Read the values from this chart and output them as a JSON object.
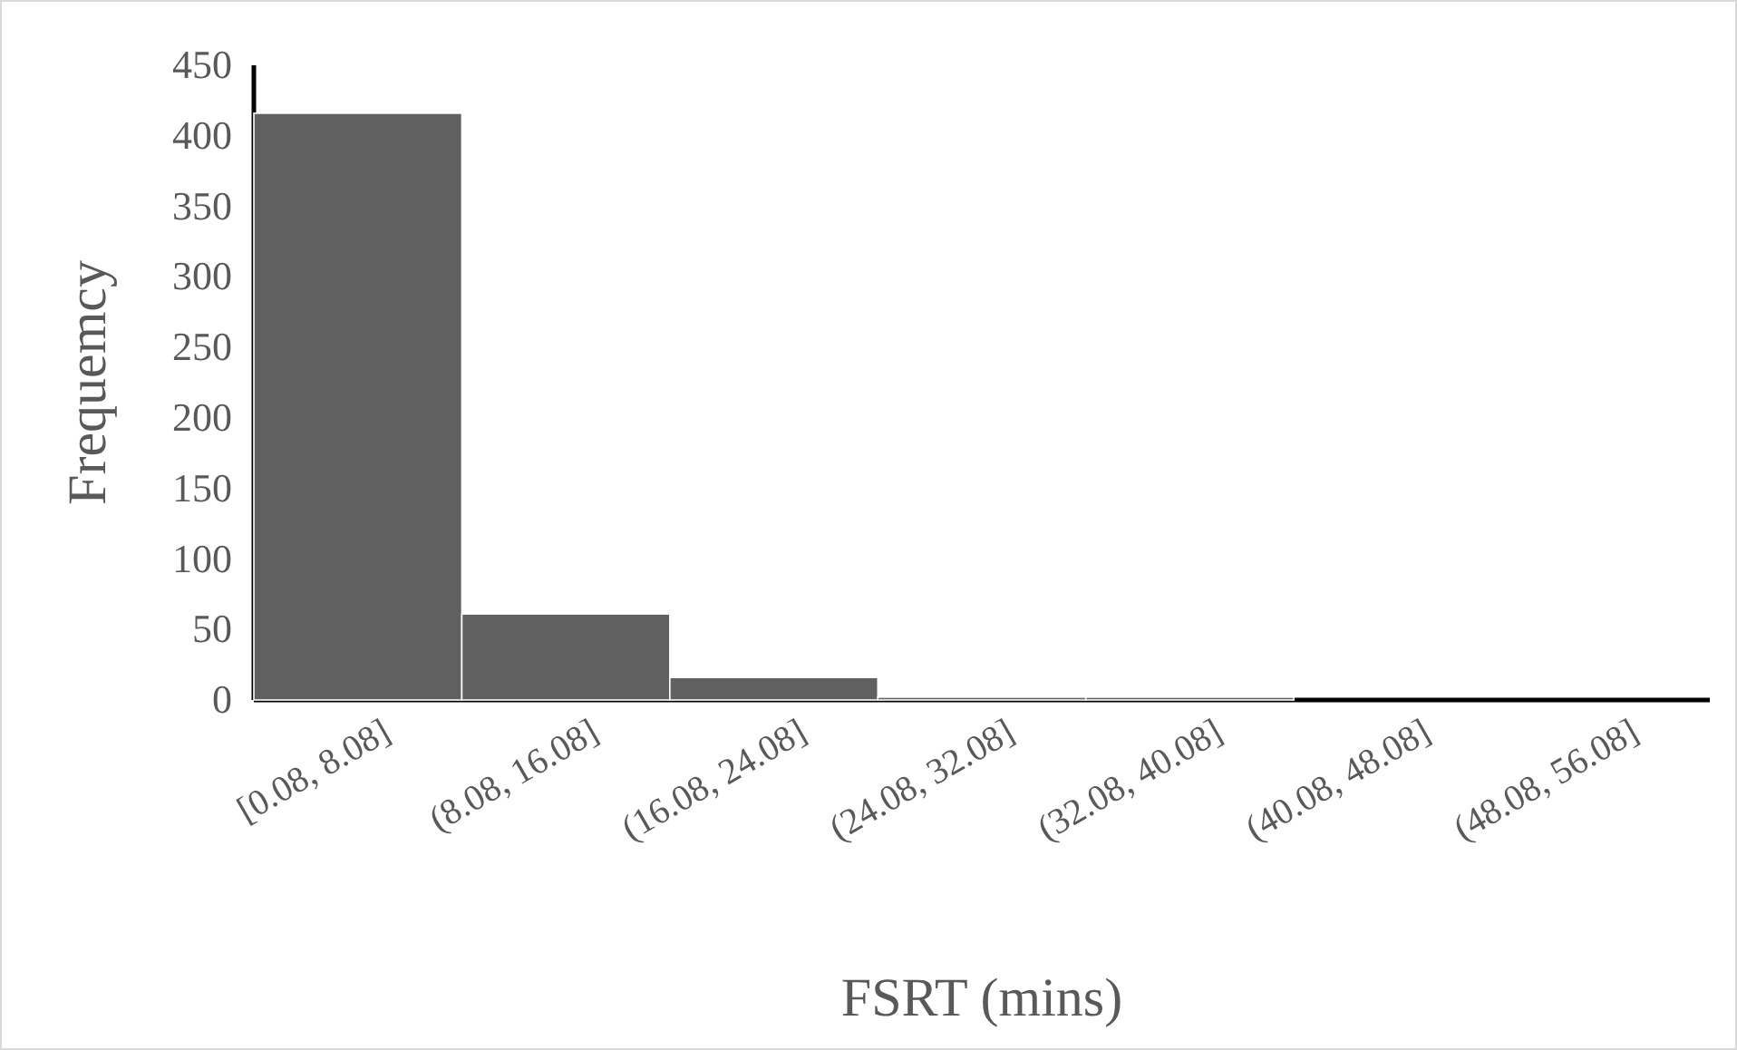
{
  "chart_data": {
    "type": "bar",
    "xlabel": "FSRT (mins)",
    "ylabel": "Frequemcy",
    "categories": [
      "[0.08, 8.08]",
      "(8.08, 16.08]",
      "(16.08, 24.08]",
      "(24.08, 32.08]",
      "(32.08, 40.08]",
      "(40.08, 48.08]",
      "(48.08, 56.08]"
    ],
    "values": [
      416,
      61,
      16,
      2,
      2,
      0,
      0
    ],
    "color": "#606060",
    "ylim": [
      0,
      450
    ],
    "yticks": [
      0,
      50,
      100,
      150,
      200,
      250,
      300,
      350,
      400,
      450
    ],
    "grid": false
  }
}
